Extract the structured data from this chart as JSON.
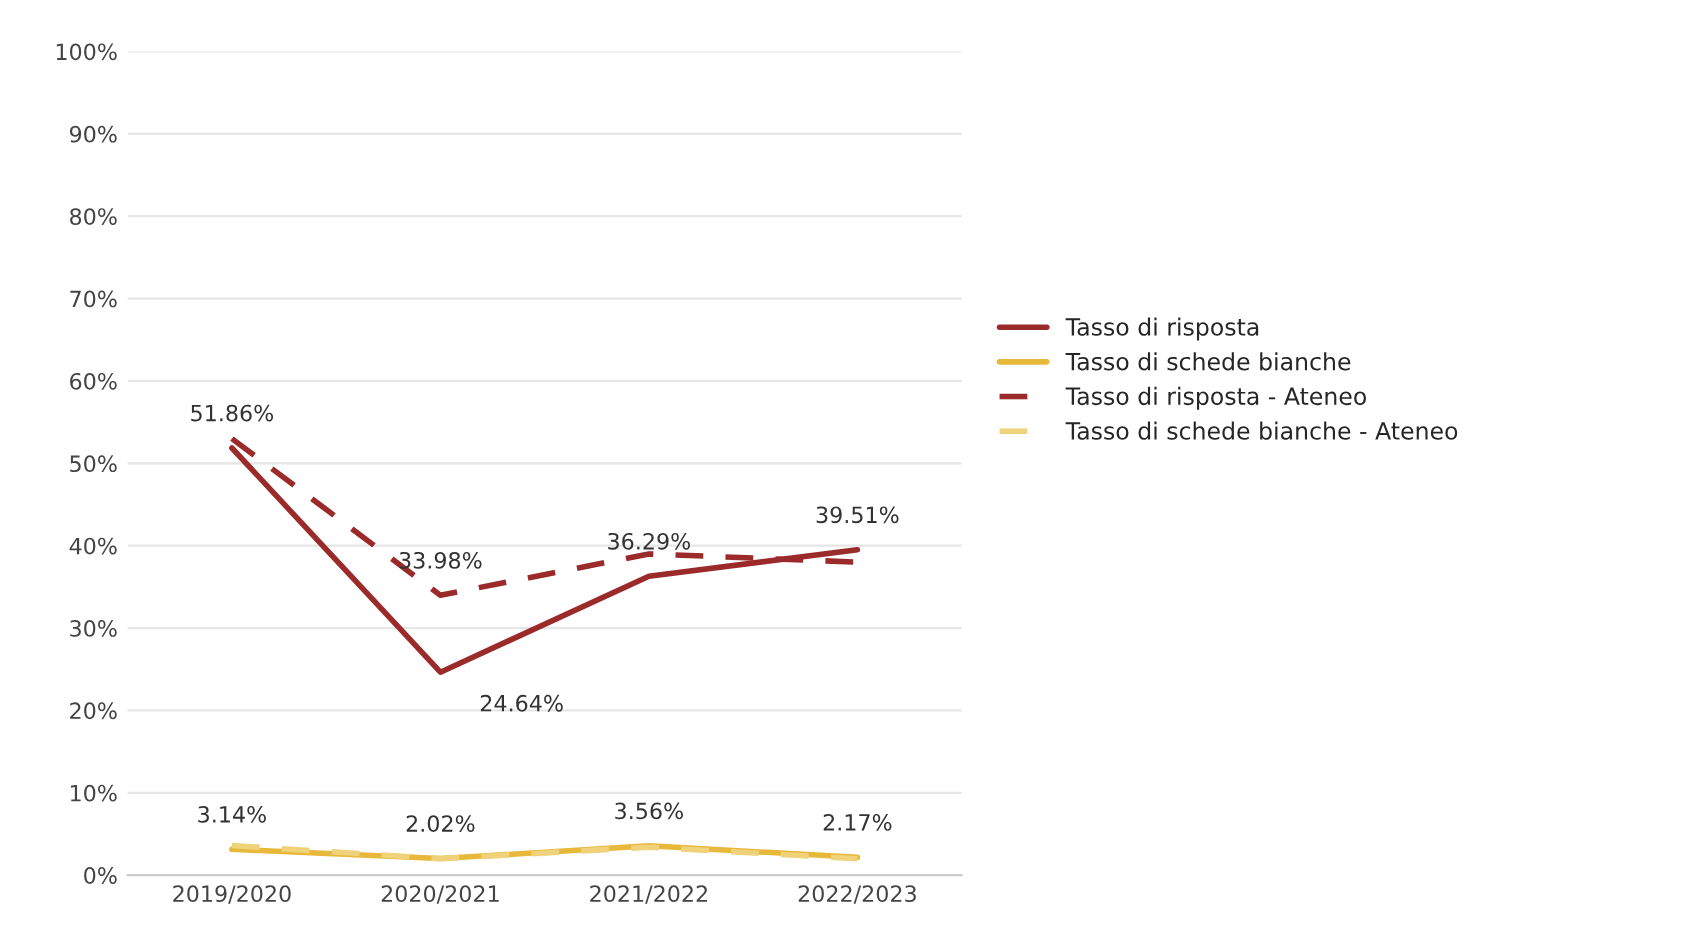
{
  "chart_data": {
    "type": "line",
    "categories": [
      "2019/2020",
      "2020/2021",
      "2021/2022",
      "2022/2023"
    ],
    "series": [
      {
        "name": "Tasso di risposta",
        "color": "#9b2a2a",
        "line_style": "solid",
        "values": [
          51.86,
          24.64,
          36.29,
          39.51
        ],
        "value_labels": [
          "51.86%",
          "24.64%",
          "36.29%",
          "39.51%"
        ]
      },
      {
        "name": "Tasso di schede bianche",
        "color": "#e8b83a",
        "line_style": "solid",
        "values": [
          3.14,
          2.02,
          3.56,
          2.17
        ],
        "value_labels": [
          "3.14%",
          "2.02%",
          "3.56%",
          "2.17%"
        ]
      },
      {
        "name": "Tasso di risposta - Ateneo",
        "color": "#9b2a2a",
        "line_style": "dashed",
        "values": [
          53.0,
          33.98,
          39.0,
          38.0
        ],
        "value_labels": [
          null,
          "33.98%",
          null,
          null
        ]
      },
      {
        "name": "Tasso di schede bianche - Ateneo",
        "color": "#f0d27a",
        "line_style": "dashed",
        "values": [
          3.6,
          2.0,
          3.4,
          2.0
        ]
      }
    ],
    "ylim": [
      0,
      100
    ],
    "yticks": [
      {
        "value": 0,
        "label": "0%"
      },
      {
        "value": 10,
        "label": "10%"
      },
      {
        "value": 20,
        "label": "20%"
      },
      {
        "value": 30,
        "label": "30%"
      },
      {
        "value": 40,
        "label": "40%"
      },
      {
        "value": 50,
        "label": "50%"
      },
      {
        "value": 60,
        "label": "60%"
      },
      {
        "value": 70,
        "label": "70%"
      },
      {
        "value": 80,
        "label": "80%"
      },
      {
        "value": 90,
        "label": "90%"
      },
      {
        "value": 100,
        "label": "100%"
      }
    ],
    "grid": "y",
    "legend": "right",
    "marker": "none"
  }
}
